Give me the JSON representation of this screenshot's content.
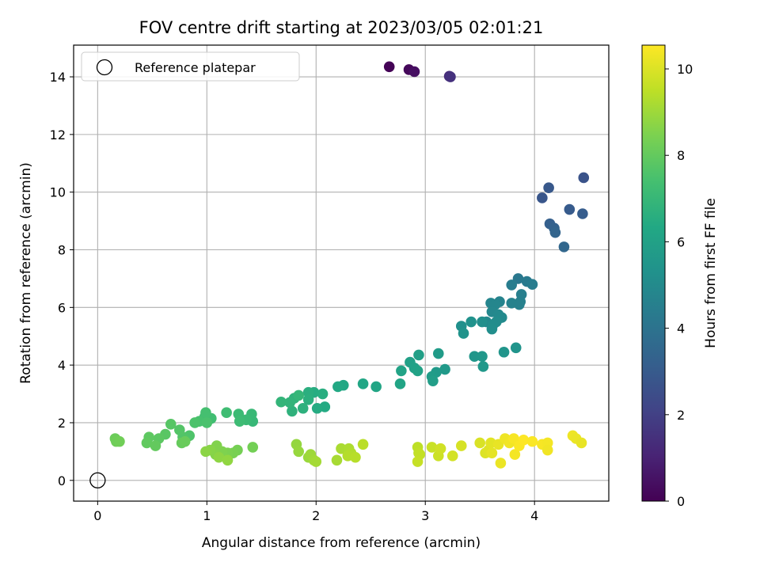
{
  "chart_data": {
    "type": "scatter",
    "title": "FOV centre drift starting at 2023/03/05 02:01:21",
    "xlabel": "Angular distance from reference (arcmin)",
    "ylabel": "Rotation from reference (arcmin)",
    "xlim": [
      -0.22,
      4.68
    ],
    "ylim": [
      -0.72,
      15.1
    ],
    "xticks": [
      0,
      1,
      2,
      3,
      4
    ],
    "yticks": [
      0,
      2,
      4,
      6,
      8,
      10,
      12,
      14
    ],
    "grid": true,
    "legend": {
      "position": "top-left",
      "entries": [
        {
          "label": "Reference platepar",
          "marker": "hollow-circle",
          "color": "#000000",
          "point": [
            0,
            0
          ]
        }
      ]
    },
    "colorbar": {
      "label": "Hours from first FF file",
      "range": [
        0,
        10.55
      ],
      "ticks": [
        0,
        2,
        4,
        6,
        8,
        10
      ],
      "colormap": "viridis",
      "stops": [
        "#440154",
        "#482475",
        "#414487",
        "#355f8d",
        "#2a788e",
        "#21918c",
        "#22a884",
        "#44bf70",
        "#7ad151",
        "#bddf26",
        "#fde725"
      ]
    },
    "series": [
      {
        "points": [
          [
            2.67,
            14.35,
            0.05
          ],
          [
            2.85,
            14.25,
            0.2
          ],
          [
            2.9,
            14.18,
            0.4
          ],
          [
            3.22,
            14.02,
            1.3
          ],
          [
            3.23,
            14.0,
            1.5
          ],
          [
            4.45,
            10.5,
            2.7
          ],
          [
            4.07,
            9.8,
            2.8
          ],
          [
            4.13,
            10.15,
            2.9
          ],
          [
            4.32,
            9.4,
            3.0
          ],
          [
            4.44,
            9.25,
            3.1
          ],
          [
            4.14,
            8.9,
            3.2
          ],
          [
            4.18,
            8.75,
            3.3
          ],
          [
            4.19,
            8.6,
            3.4
          ],
          [
            4.27,
            8.1,
            3.5
          ],
          [
            3.85,
            7.0,
            4.2
          ],
          [
            3.93,
            6.9,
            4.3
          ],
          [
            3.98,
            6.8,
            4.4
          ],
          [
            3.79,
            6.78,
            4.45
          ],
          [
            3.88,
            6.45,
            4.5
          ],
          [
            3.87,
            6.2,
            4.55
          ],
          [
            3.86,
            6.1,
            4.6
          ],
          [
            3.79,
            6.15,
            4.65
          ],
          [
            3.68,
            6.2,
            4.7
          ],
          [
            3.6,
            6.15,
            4.75
          ],
          [
            3.64,
            6.1,
            4.8
          ],
          [
            3.61,
            5.85,
            4.85
          ],
          [
            3.56,
            5.5,
            4.9
          ],
          [
            3.67,
            5.75,
            4.95
          ],
          [
            3.7,
            5.65,
            5.0
          ],
          [
            3.65,
            5.5,
            5.05
          ],
          [
            3.62,
            5.4,
            5.1
          ],
          [
            3.61,
            5.25,
            5.15
          ],
          [
            3.52,
            5.5,
            5.2
          ],
          [
            3.33,
            5.35,
            5.25
          ],
          [
            3.42,
            5.5,
            5.3
          ],
          [
            3.35,
            5.1,
            5.35
          ],
          [
            3.83,
            4.6,
            5.4
          ],
          [
            3.72,
            4.45,
            5.45
          ],
          [
            3.45,
            4.3,
            5.5
          ],
          [
            3.52,
            4.3,
            5.55
          ],
          [
            3.53,
            3.95,
            5.6
          ],
          [
            3.18,
            3.85,
            5.65
          ],
          [
            3.1,
            3.75,
            5.7
          ],
          [
            3.12,
            4.4,
            5.75
          ],
          [
            3.06,
            3.6,
            5.8
          ],
          [
            3.07,
            3.45,
            5.85
          ],
          [
            2.94,
            4.35,
            5.9
          ],
          [
            2.86,
            4.1,
            5.95
          ],
          [
            2.9,
            3.9,
            6.0
          ],
          [
            2.93,
            3.8,
            6.05
          ],
          [
            2.78,
            3.8,
            6.1
          ],
          [
            2.77,
            3.35,
            6.15
          ],
          [
            2.55,
            3.25,
            6.2
          ],
          [
            2.43,
            3.35,
            6.25
          ],
          [
            2.25,
            3.3,
            6.3
          ],
          [
            2.2,
            3.25,
            6.35
          ],
          [
            2.08,
            2.55,
            6.4
          ],
          [
            2.01,
            2.5,
            6.45
          ],
          [
            1.98,
            3.05,
            6.5
          ],
          [
            2.06,
            3.0,
            6.55
          ],
          [
            1.93,
            3.05,
            6.6
          ],
          [
            1.93,
            2.8,
            6.65
          ],
          [
            1.88,
            2.5,
            6.7
          ],
          [
            1.78,
            2.4,
            6.75
          ],
          [
            1.8,
            2.85,
            6.8
          ],
          [
            1.76,
            2.7,
            6.85
          ],
          [
            1.68,
            2.72,
            6.9
          ],
          [
            1.84,
            2.95,
            6.95
          ],
          [
            1.42,
            2.05,
            7.0
          ],
          [
            1.41,
            2.3,
            7.05
          ],
          [
            1.36,
            2.1,
            7.1
          ],
          [
            1.29,
            2.3,
            7.15
          ],
          [
            1.3,
            2.05,
            7.2
          ],
          [
            1.18,
            2.35,
            7.25
          ],
          [
            1.04,
            2.15,
            7.3
          ],
          [
            0.98,
            2.2,
            7.35
          ],
          [
            0.99,
            2.35,
            7.4
          ],
          [
            0.93,
            2.05,
            7.45
          ],
          [
            1.0,
            2.0,
            7.5
          ],
          [
            0.89,
            2.0,
            7.55
          ],
          [
            0.84,
            1.55,
            7.6
          ],
          [
            0.78,
            1.5,
            7.65
          ],
          [
            0.75,
            1.75,
            7.7
          ],
          [
            0.67,
            1.95,
            7.75
          ],
          [
            0.62,
            1.6,
            7.8
          ],
          [
            0.56,
            1.45,
            7.85
          ],
          [
            0.47,
            1.5,
            7.9
          ],
          [
            0.45,
            1.3,
            7.95
          ],
          [
            0.53,
            1.2,
            8.0
          ],
          [
            0.77,
            1.3,
            8.05
          ],
          [
            0.8,
            1.35,
            8.1
          ],
          [
            0.16,
            1.45,
            8.15
          ],
          [
            0.17,
            1.35,
            8.2
          ],
          [
            0.2,
            1.35,
            8.25
          ],
          [
            1.42,
            1.15,
            8.3
          ],
          [
            1.28,
            1.05,
            8.35
          ],
          [
            1.24,
            0.95,
            8.4
          ],
          [
            1.19,
            0.95,
            8.45
          ],
          [
            1.14,
            1.0,
            8.5
          ],
          [
            1.09,
            1.2,
            8.55
          ],
          [
            1.08,
            0.9,
            8.6
          ],
          [
            1.03,
            1.05,
            8.65
          ],
          [
            0.99,
            1.0,
            8.7
          ],
          [
            1.11,
            0.8,
            8.75
          ],
          [
            1.19,
            0.7,
            8.8
          ],
          [
            1.82,
            1.25,
            8.85
          ],
          [
            1.84,
            1.0,
            8.9
          ],
          [
            1.93,
            0.8,
            8.95
          ],
          [
            1.95,
            0.9,
            9.0
          ],
          [
            1.98,
            0.7,
            9.05
          ],
          [
            2.0,
            0.65,
            9.1
          ],
          [
            2.19,
            0.7,
            9.15
          ],
          [
            2.23,
            1.1,
            9.2
          ],
          [
            2.3,
            1.1,
            9.25
          ],
          [
            2.32,
            0.95,
            9.3
          ],
          [
            2.29,
            0.85,
            9.35
          ],
          [
            2.36,
            0.8,
            9.4
          ],
          [
            2.43,
            1.25,
            9.45
          ],
          [
            2.93,
            1.15,
            9.5
          ],
          [
            2.94,
            0.95,
            9.55
          ],
          [
            2.95,
            0.9,
            9.6
          ],
          [
            2.93,
            0.65,
            9.65
          ],
          [
            3.06,
            1.15,
            9.7
          ],
          [
            3.12,
            0.85,
            9.75
          ],
          [
            3.14,
            1.1,
            9.8
          ],
          [
            3.25,
            0.85,
            9.85
          ],
          [
            3.33,
            1.2,
            9.9
          ],
          [
            3.5,
            1.3,
            9.95
          ],
          [
            3.55,
            0.95,
            10.0
          ],
          [
            3.58,
            1.05,
            10.05
          ],
          [
            3.6,
            1.3,
            10.1
          ],
          [
            3.61,
            0.95,
            10.15
          ],
          [
            3.67,
            1.25,
            10.2
          ],
          [
            3.69,
            0.6,
            10.25
          ],
          [
            3.73,
            1.45,
            10.3
          ],
          [
            3.77,
            1.3,
            10.35
          ],
          [
            3.82,
            0.9,
            10.4
          ],
          [
            3.81,
            1.45,
            10.45
          ],
          [
            3.86,
            1.2,
            10.5
          ],
          [
            3.9,
            1.4,
            10.55
          ],
          [
            3.98,
            1.35,
            10.5
          ],
          [
            4.07,
            1.25,
            10.45
          ],
          [
            4.12,
            1.3,
            10.4
          ],
          [
            4.12,
            1.05,
            10.35
          ],
          [
            4.35,
            1.55,
            10.3
          ],
          [
            4.38,
            1.45,
            10.25
          ],
          [
            4.43,
            1.3,
            10.2
          ]
        ]
      }
    ]
  }
}
